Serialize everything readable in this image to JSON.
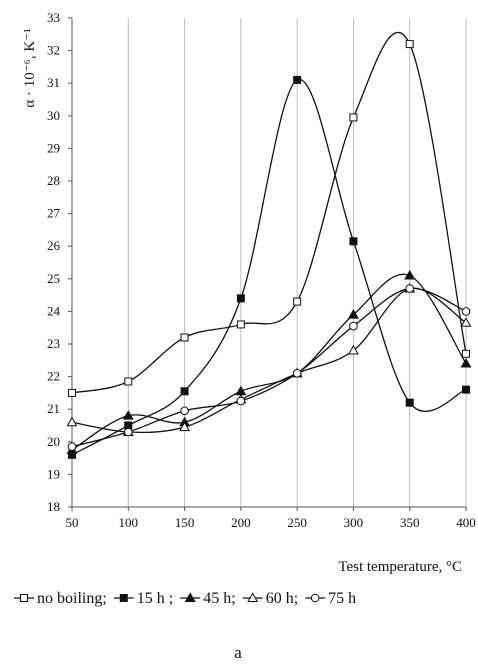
{
  "chart_data": {
    "type": "line",
    "xlabel": "Test temperature, °C",
    "ylabel": "α · 10⁻⁶, K⁻¹",
    "x": [
      50,
      100,
      150,
      200,
      250,
      300,
      350,
      400
    ],
    "xlim": [
      50,
      400
    ],
    "ylim": [
      18,
      33
    ],
    "yticks": [
      18,
      19,
      20,
      21,
      22,
      23,
      24,
      25,
      26,
      27,
      28,
      29,
      30,
      31,
      32,
      33
    ],
    "grid": "vertical",
    "smooth": true,
    "series": [
      {
        "name": "no boiling;",
        "marker": "square-open",
        "values": [
          21.5,
          21.85,
          23.2,
          23.6,
          24.3,
          29.95,
          32.2,
          22.7
        ]
      },
      {
        "name": "15 h ;",
        "marker": "square-filled",
        "values": [
          19.6,
          20.5,
          21.55,
          24.4,
          31.1,
          26.15,
          21.2,
          21.6
        ]
      },
      {
        "name": "45 h;",
        "marker": "triangle-filled",
        "values": [
          19.75,
          20.8,
          20.6,
          21.55,
          22.1,
          23.9,
          25.1,
          22.4
        ]
      },
      {
        "name": "60 h;",
        "marker": "triangle-open",
        "values": [
          20.6,
          20.3,
          20.45,
          21.3,
          22.1,
          22.8,
          24.7,
          23.65
        ]
      },
      {
        "name": "75 h",
        "marker": "circle-open",
        "values": [
          19.85,
          20.3,
          20.95,
          21.25,
          22.1,
          23.55,
          24.7,
          24.0
        ]
      }
    ]
  },
  "caption": "a"
}
